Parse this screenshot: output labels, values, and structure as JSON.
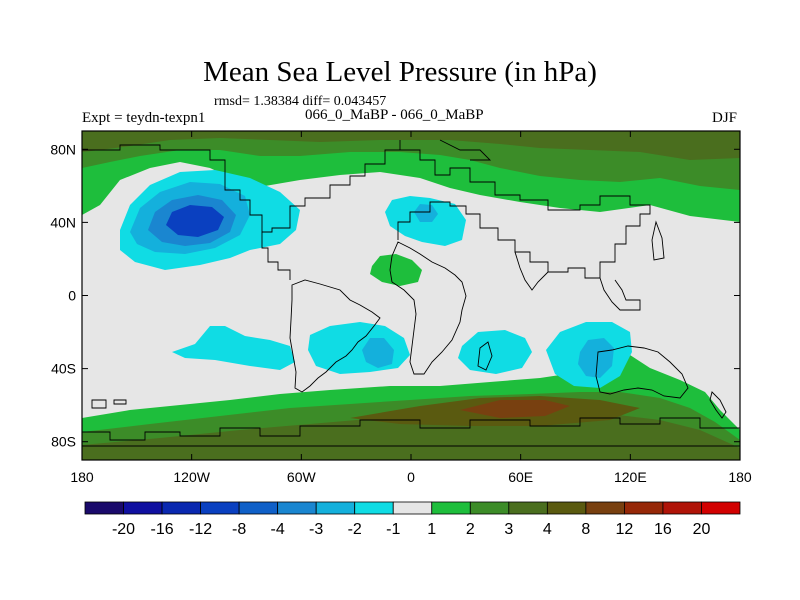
{
  "chart_data": {
    "type": "heatmap",
    "title": "Mean Sea Level Pressure (in hPa)",
    "stats_text": "rmsd= 1.38384 diff= 0.043457",
    "left_label": "Expt = teydn-texpn1",
    "center_label": "066_0_MaBP - 066_0_MaBP",
    "right_label": "DJF",
    "xlabel": "",
    "ylabel": "",
    "xlim": [
      -180,
      180
    ],
    "ylim": [
      -90,
      90
    ],
    "x_ticks": [
      {
        "value": -180,
        "label": "180"
      },
      {
        "value": -120,
        "label": "120W"
      },
      {
        "value": -60,
        "label": "60W"
      },
      {
        "value": 0,
        "label": "0"
      },
      {
        "value": 60,
        "label": "60E"
      },
      {
        "value": 120,
        "label": "120E"
      },
      {
        "value": 180,
        "label": "180"
      }
    ],
    "y_ticks": [
      {
        "value": 80,
        "label": "80N"
      },
      {
        "value": 40,
        "label": "40N"
      },
      {
        "value": 0,
        "label": "0"
      },
      {
        "value": -40,
        "label": "40S"
      },
      {
        "value": -80,
        "label": "80S"
      }
    ],
    "colorbar": {
      "levels": [
        -20,
        -16,
        -12,
        -8,
        -4,
        -3,
        -2,
        -1,
        1,
        2,
        3,
        4,
        8,
        12,
        16,
        20
      ],
      "colors": [
        "#1a0a6b",
        "#1010a0",
        "#0a28b0",
        "#0a40c0",
        "#1060c8",
        "#1a86d0",
        "#14b0dc",
        "#10dce4",
        "#e6e6e6",
        "#1ebe3c",
        "#3c8c28",
        "#4a6e1e",
        "#5a5a10",
        "#784010",
        "#962808",
        "#b01408",
        "#d20000"
      ]
    },
    "background_bin": "-1 to 1",
    "features": [
      {
        "name": "north-pacific-low",
        "lon": -125,
        "lat": 40,
        "min_value": -8
      },
      {
        "name": "north-atlantic-low",
        "lon": 5,
        "lat": 42,
        "min_value": -2
      },
      {
        "name": "south-atlantic-low",
        "lon": -20,
        "lat": -30,
        "min_value": -3
      },
      {
        "name": "south-indian-low",
        "lon": 100,
        "lat": -35,
        "min_value": -3
      },
      {
        "name": "southern-ocean-high",
        "lon": 60,
        "lat": -62,
        "max_value": 8
      },
      {
        "name": "arctic-high",
        "lon": 0,
        "lat": 80,
        "max_value": 4
      }
    ]
  }
}
